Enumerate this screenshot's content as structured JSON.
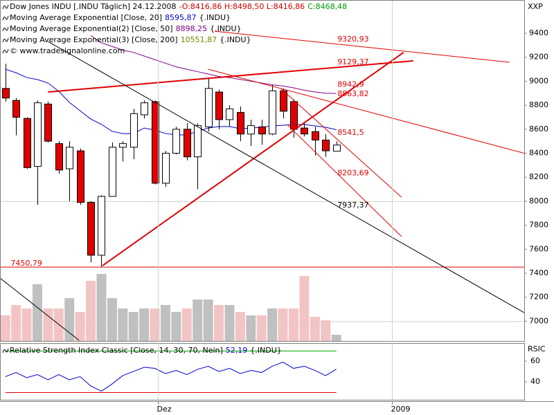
{
  "chart_data": [
    {
      "type": "candlestick",
      "header": [
        [
          {
            "text": "Dow Jones INDU [.INDU Täglich] 24.12.2008",
            "color": "#000000"
          },
          {
            "text": "-O:8416,86 H:8498,50 L:8416,86",
            "color": "#cc0000"
          },
          {
            "text": "C:8468,48",
            "color": "#009900"
          }
        ],
        [
          {
            "text": "Moving Average Exponential [Close, 20]",
            "color": "#000000"
          },
          {
            "text": "8595,87",
            "color": "#0000cc"
          },
          {
            "text": "{.INDU}",
            "color": "#000000"
          }
        ],
        [
          {
            "text": "Moving Average Exponential(2) [Close, 50]",
            "color": "#000000"
          },
          {
            "text": "8898,25",
            "color": "#800080"
          },
          {
            "text": "{.INDU}",
            "color": "#000000"
          }
        ],
        [
          {
            "text": "Moving Average Exponential(3) [Close, 200]",
            "color": "#000000"
          },
          {
            "text": "10551,87",
            "color": "#808000"
          },
          {
            "text": "{.INDU}",
            "color": "#000000"
          }
        ],
        [
          {
            "text": "© www.tradesignalonline.com",
            "color": "#000000"
          }
        ]
      ],
      "axis_label": "XXP",
      "xlim": [
        -0.5,
        48.6
      ],
      "xticks": [
        {
          "value": 14.3,
          "label": "Dez"
        },
        {
          "value": 36.2,
          "label": "2009"
        }
      ],
      "ylim": [
        6835,
        9677
      ],
      "yticks": [
        7000,
        7200,
        7400,
        7600,
        7800,
        8000,
        8200,
        8400,
        8600,
        8800,
        9000,
        9200,
        9400
      ],
      "grid_yticks": [
        8000,
        7000
      ],
      "up_color": "#ffffff",
      "down_color": "#e00000",
      "open": [
        8940,
        8840,
        8690,
        8290,
        8810,
        8480,
        8270,
        8420,
        7990,
        7550,
        8040,
        8450,
        8450,
        8720,
        8830,
        8150,
        8400,
        8600,
        8370,
        8620,
        8910,
        8680,
        8740,
        8560,
        8620,
        8560,
        8920,
        8830,
        8610,
        8580,
        8510,
        8416.86
      ],
      "high": [
        9146,
        8860,
        8700,
        8840,
        8830,
        8500,
        8500,
        8440,
        8000,
        8050,
        8490,
        8500,
        8770,
        8840,
        8840,
        8420,
        8620,
        8650,
        8650,
        9030,
        8930,
        8800,
        8790,
        8680,
        8680,
        8970,
        8940,
        8850,
        8650,
        8620,
        8560,
        8498.5
      ],
      "low": [
        8830,
        8550,
        8270,
        7970,
        8490,
        8230,
        8000,
        7970,
        7490,
        7450,
        8040,
        8330,
        8350,
        8690,
        8140,
        8120,
        8390,
        8340,
        8100,
        8580,
        8600,
        8620,
        8500,
        8460,
        8470,
        8550,
        8690,
        8530,
        8540,
        8380,
        8370,
        8416.86
      ],
      "close": [
        8860,
        8700,
        8280,
        8820,
        8500,
        8260,
        8450,
        7990,
        7550,
        8040,
        8450,
        8480,
        8730,
        8820,
        8150,
        8400,
        8600,
        8370,
        8630,
        8940,
        8680,
        8770,
        8560,
        8630,
        8560,
        8920,
        8750,
        8600,
        8560,
        8510,
        8420,
        8468.48
      ],
      "volume": [
        37,
        52,
        47,
        82,
        47,
        47,
        62,
        42,
        87,
        97,
        62,
        47,
        42,
        47,
        47,
        52,
        42,
        47,
        60,
        60,
        52,
        52,
        42,
        37,
        37,
        47,
        47,
        47,
        94,
        35,
        30,
        9
      ],
      "volume_ylim": [
        0,
        300
      ],
      "volume_colors": {
        "up": "#c0c0c0",
        "down": "#f2c4c4"
      },
      "series": [
        {
          "name": "EMA 20",
          "color": "#0000cc",
          "values": [
            9100,
            9071,
            9031,
            9014,
            8985,
            8916,
            8824,
            8754,
            8685,
            8640,
            8582,
            8564,
            8564,
            8610,
            8593,
            8564,
            8553,
            8553,
            8582,
            8610,
            8622,
            8622,
            8605,
            8610,
            8616,
            8628,
            8633,
            8639,
            8639,
            8628,
            8616,
            8595.87
          ]
        },
        {
          "name": "EMA 50",
          "color": "#800080",
          "values": [
            null,
            null,
            null,
            null,
            null,
            null,
            null,
            null,
            9380,
            9320,
            9290,
            9260,
            9240,
            9210,
            9180,
            9150,
            9120,
            9100,
            9080,
            9060,
            9040,
            9030,
            9015,
            9000,
            8985,
            8970,
            8960,
            8945,
            8925,
            8910,
            8900,
            8898.25
          ]
        }
      ],
      "trendlines": [
        {
          "color": "#e00000",
          "width": 2,
          "points": [
            [
              9.1,
              7463
            ],
            [
              37.3,
              9240
            ]
          ]
        },
        {
          "color": "#e00000",
          "width": 2,
          "points": [
            [
              4.0,
              8910
            ],
            [
              38.2,
              9170
            ]
          ]
        },
        {
          "color": "#e00000",
          "width": 1,
          "points": [
            [
              19.6,
              9417
            ],
            [
              47.2,
              9158
            ]
          ]
        },
        {
          "color": "#e00000",
          "width": 1,
          "points": [
            [
              19.0,
              9100
            ],
            [
              48.6,
              8400
            ]
          ]
        },
        {
          "color": "#e00000",
          "width": 1,
          "points": [
            [
              25.8,
              8939
            ],
            [
              37.1,
              8034
            ]
          ]
        },
        {
          "color": "#e00000",
          "width": 1,
          "points": [
            [
              26.4,
              8639
            ],
            [
              37.1,
              7706
            ]
          ]
        },
        {
          "color": "#000000",
          "width": 1,
          "points": [
            [
              4.0,
              9331
            ],
            [
              48.6,
              7071
            ]
          ]
        },
        {
          "color": "#000000",
          "width": 1,
          "points": [
            [
              -0.5,
              7360
            ],
            [
              6.9,
              6841
            ]
          ]
        }
      ],
      "hlines": [
        {
          "value": 7450.79,
          "color": "#e00000"
        }
      ],
      "annotations": [
        {
          "label": "9320,93",
          "value": 9320.93,
          "x": 31.1,
          "color": "#e00000"
        },
        {
          "label": "9129,37",
          "value": 9129.37,
          "x": 31.1,
          "color": "#e00000"
        },
        {
          "label": "8942,9",
          "value": 8942.9,
          "x": 31.1,
          "color": "#e00000"
        },
        {
          "label": "8863,82",
          "value": 8863.82,
          "x": 31.1,
          "color": "#e00000"
        },
        {
          "label": "8541,5",
          "value": 8541.5,
          "x": 31.1,
          "color": "#e00000"
        },
        {
          "label": "8203,69",
          "value": 8203.69,
          "x": 31.1,
          "color": "#e00000"
        },
        {
          "label": "7937,37",
          "value": 7937.37,
          "x": 31.1,
          "color": "#000000"
        },
        {
          "label": "7450,79",
          "value": 7450.79,
          "x": 0.5,
          "color": "#e00000"
        }
      ]
    },
    {
      "type": "line",
      "header": [
        [
          {
            "text": "Relative Strength Index Classic [Close, 14, 30, 70, Nein]",
            "color": "#000000"
          },
          {
            "text": "52,19",
            "color": "#0000cc"
          },
          {
            "text": "{.INDU}",
            "color": "#000000"
          }
        ]
      ],
      "axis_label": "RSIC",
      "xlim": [
        -0.5,
        48.6
      ],
      "ylim": [
        22.7,
        76.7
      ],
      "yticks": [
        40,
        60
      ],
      "levels": [
        {
          "value": 70,
          "color": "#00aa00"
        },
        {
          "value": 30,
          "color": "#e00000"
        }
      ],
      "series": [
        {
          "name": "RSI",
          "color": "#0000cc",
          "values": [
            45,
            49,
            44,
            47,
            42,
            47,
            42,
            45,
            36,
            31,
            38,
            46,
            50,
            54,
            53,
            48,
            51,
            47,
            52,
            55,
            50,
            53,
            48,
            51,
            49,
            55,
            59,
            53,
            55,
            51,
            46,
            52.19
          ]
        }
      ]
    }
  ]
}
